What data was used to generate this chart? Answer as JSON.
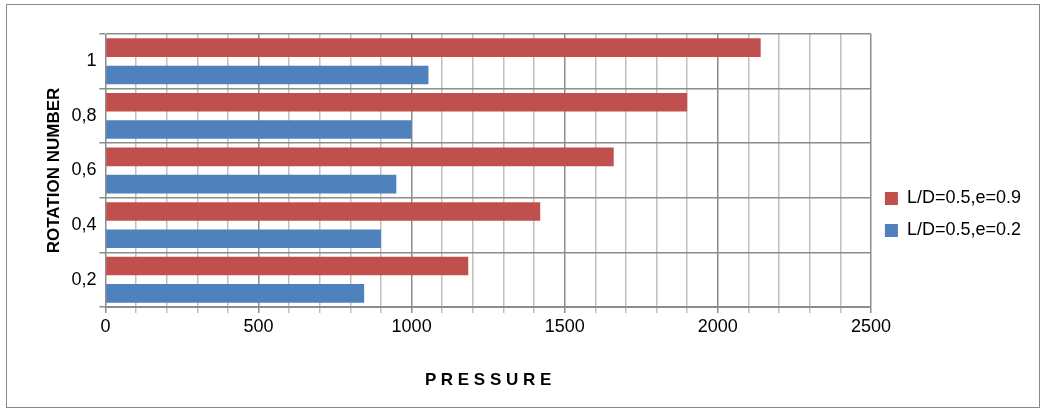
{
  "chart_data": {
    "type": "bar",
    "orientation": "horizontal",
    "xlabel": "P R E S S U R E",
    "ylabel": "ROTATION NUMBER",
    "categories": [
      "1",
      "0,8",
      "0,6",
      "0,4",
      "0,2"
    ],
    "series": [
      {
        "name": "L/D=0.5,e=0.9",
        "color": "#c0504d",
        "values": [
          2140,
          1900,
          1660,
          1420,
          1185
        ]
      },
      {
        "name": "L/D=0.5,e=0.2",
        "color": "#4f81bd",
        "values": [
          1055,
          1000,
          950,
          900,
          845
        ]
      }
    ],
    "xlim": [
      0,
      2500
    ],
    "xticks": [
      0,
      {
        "value": 100,
        "label": null
      },
      {
        "value": 200,
        "label": null
      },
      {
        "value": 300,
        "label": null
      },
      {
        "value": 400,
        "label": null
      },
      500,
      {
        "value": 600,
        "label": null
      },
      {
        "value": 700,
        "label": null
      },
      {
        "value": 800,
        "label": null
      },
      {
        "value": 900,
        "label": null
      },
      1000,
      {
        "value": 1100,
        "label": null
      },
      {
        "value": 1200,
        "label": null
      },
      {
        "value": 1300,
        "label": null
      },
      {
        "value": 1400,
        "label": null
      },
      1500,
      {
        "value": 1600,
        "label": null
      },
      {
        "value": 1700,
        "label": null
      },
      {
        "value": 1800,
        "label": null
      },
      {
        "value": 1900,
        "label": null
      },
      2000,
      {
        "value": 2100,
        "label": null
      },
      {
        "value": 2200,
        "label": null
      },
      {
        "value": 2300,
        "label": null
      },
      {
        "value": 2400,
        "label": null
      },
      2500
    ],
    "grid": true,
    "legend": "right"
  }
}
